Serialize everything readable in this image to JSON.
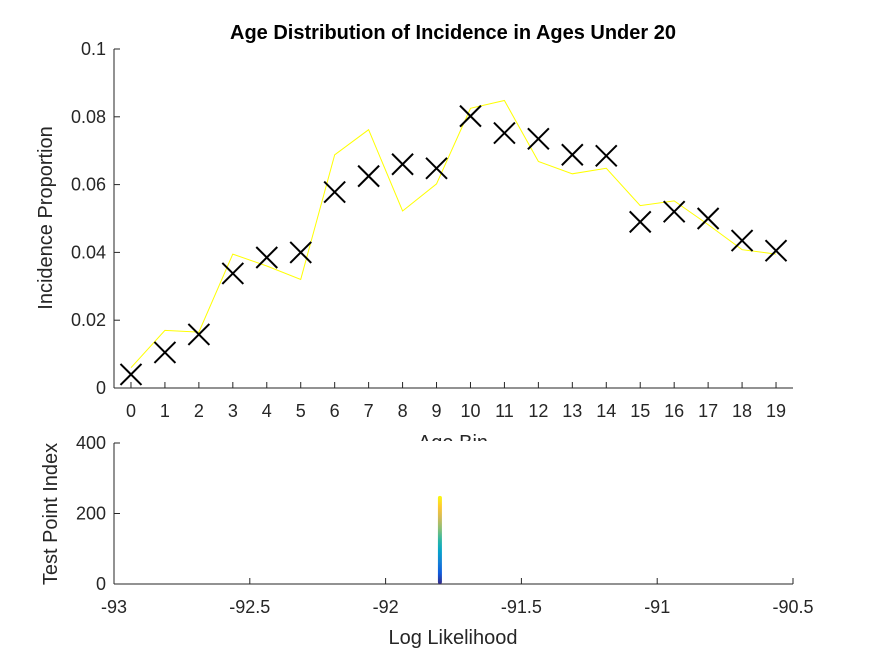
{
  "chart_data": [
    {
      "type": "line",
      "title": "Age Distribution of Incidence in Ages Under 20",
      "xlabel": "Age Bin",
      "ylabel": "Incidence Proportion",
      "xlim": [
        -0.5,
        19.5
      ],
      "ylim": [
        0,
        0.1
      ],
      "x_ticks": [
        "0",
        "1",
        "2",
        "3",
        "4",
        "5",
        "6",
        "7",
        "8",
        "9",
        "10",
        "11",
        "12",
        "13",
        "14",
        "15",
        "16",
        "17",
        "18",
        "19"
      ],
      "y_ticks": [
        "0",
        "0.02",
        "0.04",
        "0.06",
        "0.08",
        "0.1"
      ],
      "x": [
        0,
        1,
        2,
        3,
        4,
        5,
        6,
        7,
        8,
        9,
        10,
        11,
        12,
        13,
        14,
        15,
        16,
        17,
        18,
        19
      ],
      "series": [
        {
          "marker": "x",
          "color": "#000000",
          "values": [
            0.004,
            0.0105,
            0.0158,
            0.0338,
            0.0385,
            0.04,
            0.0578,
            0.0625,
            0.066,
            0.0648,
            0.0802,
            0.0752,
            0.0735,
            0.0688,
            0.0685,
            0.049,
            0.052,
            0.05,
            0.0435,
            0.0405
          ]
        },
        {
          "line": "solid",
          "color": "#ffff00",
          "values": [
            0.006,
            0.017,
            0.0165,
            0.0395,
            0.036,
            0.032,
            0.0688,
            0.0762,
            0.0522,
            0.0602,
            0.0825,
            0.0848,
            0.0668,
            0.0632,
            0.0648,
            0.0538,
            0.0552,
            0.0482,
            0.0408,
            0.0395
          ]
        }
      ]
    },
    {
      "type": "scatter",
      "title": "",
      "xlabel": "Log Likelihood",
      "ylabel": "Test Point Index",
      "xlim": [
        -93,
        -90.5
      ],
      "ylim": [
        0,
        400
      ],
      "x_ticks": [
        "-93",
        "-92.5",
        "-92",
        "-91.5",
        "-91",
        "-90.5"
      ],
      "y_ticks": [
        "0",
        "200",
        "400"
      ],
      "points": {
        "x": -91.8,
        "y_range": [
          0,
          250
        ],
        "colormap": "parula"
      },
      "colormap_colors": [
        "#352a87",
        "#0f5cdd",
        "#1481d6",
        "#06a4ca",
        "#2eb7a4",
        "#87bf77",
        "#d1bb59",
        "#fec832",
        "#f9fb0e"
      ]
    }
  ]
}
